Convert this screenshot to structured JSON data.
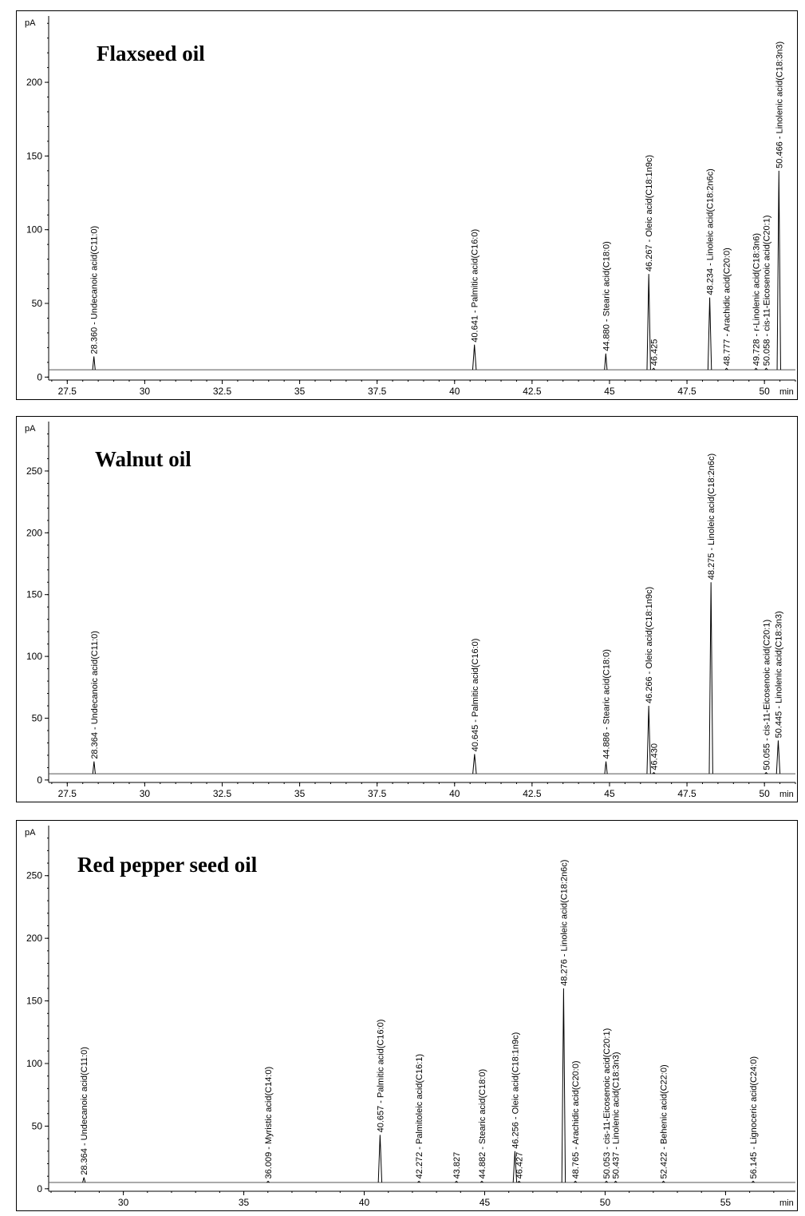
{
  "chart_data": [
    {
      "type": "line",
      "title": "Flaxseed oil",
      "ylabel": "pA",
      "xlabel": "min",
      "xlim": [
        26.9,
        51.0
      ],
      "ylim": [
        -2,
        245
      ],
      "baseline": 5,
      "xticks": [
        27.5,
        30,
        32.5,
        35,
        37.5,
        40,
        42.5,
        45,
        47.5,
        50
      ],
      "yticks": [
        0,
        50,
        100,
        150,
        200
      ],
      "peaks": [
        {
          "rt": 28.36,
          "height": 14,
          "label": "28.360 -  Undecanoic acid(C11:0)"
        },
        {
          "rt": 40.641,
          "height": 22,
          "label": "40.641 -  Palmitic acid(C16:0)"
        },
        {
          "rt": 44.88,
          "height": 16,
          "label": "44.880 -  Stearic acid(C18:0)"
        },
        {
          "rt": 46.267,
          "height": 70,
          "label": "46.267 -  Oleic acid(C18:1n9c)"
        },
        {
          "rt": 46.425,
          "height": 6,
          "label": "46.425"
        },
        {
          "rt": 48.234,
          "height": 54,
          "label": "48.234 -  Linoleic acid(C18:2n6c)"
        },
        {
          "rt": 48.777,
          "height": 6,
          "label": "48.777 -  Arachidic acid(C20:0)"
        },
        {
          "rt": 49.728,
          "height": 6,
          "label": "49.728 -  r-Linolenic acid(C18:3n6)"
        },
        {
          "rt": 50.058,
          "height": 6,
          "label": "50.058 -  cis-11-Eicosenoic acid(C20:1)"
        },
        {
          "rt": 50.466,
          "height": 140,
          "label": "50.466 -  Linolenic acid(C18:3n3)"
        }
      ]
    },
    {
      "type": "line",
      "title": "Walnut oil",
      "ylabel": "pA",
      "xlabel": "min",
      "xlim": [
        26.9,
        51.0
      ],
      "ylim": [
        -2,
        290
      ],
      "baseline": 5,
      "xticks": [
        27.5,
        30,
        32.5,
        35,
        37.5,
        40,
        42.5,
        45,
        47.5,
        50
      ],
      "yticks": [
        0,
        50,
        100,
        150,
        200,
        250
      ],
      "peaks": [
        {
          "rt": 28.364,
          "height": 15,
          "label": "28.364 -  Undecanoic acid(C11:0)"
        },
        {
          "rt": 40.645,
          "height": 21,
          "label": "40.645 -  Palmitic acid(C16:0)"
        },
        {
          "rt": 44.886,
          "height": 15,
          "label": "44.886 -  Stearic acid(C18:0)"
        },
        {
          "rt": 46.266,
          "height": 60,
          "label": "46.266 -  Oleic acid(C18:1n9c)"
        },
        {
          "rt": 46.43,
          "height": 6,
          "label": "46.430"
        },
        {
          "rt": 48.275,
          "height": 160,
          "label": "48.275 -  Linoleic acid(C18:2n6c)"
        },
        {
          "rt": 50.055,
          "height": 6,
          "label": "50.055 -  cis-11-Eicosenoic acid(C20:1)"
        },
        {
          "rt": 50.445,
          "height": 32,
          "label": "50.445 -  Linolenic acid(C18:3n3)"
        }
      ]
    },
    {
      "type": "line",
      "title": "Red pepper seed oil",
      "ylabel": "pA",
      "xlabel": "min",
      "xlim": [
        26.9,
        57.9
      ],
      "ylim": [
        -2,
        290
      ],
      "baseline": 5,
      "xticks": [
        30,
        35,
        40,
        45,
        50,
        55
      ],
      "yticks": [
        0,
        50,
        100,
        150,
        200,
        250
      ],
      "peaks": [
        {
          "rt": 28.364,
          "height": 9,
          "label": "28.364 -  Undecanoic acid(C11:0)"
        },
        {
          "rt": 36.009,
          "height": 6,
          "label": "36.009 -  Myristic acid(C14:0)"
        },
        {
          "rt": 40.657,
          "height": 43,
          "label": "40.657 -  Palmitic acid(C16:0)"
        },
        {
          "rt": 42.272,
          "height": 6,
          "label": "42.272 -  Palmitoleic acid(C16:1)"
        },
        {
          "rt": 43.827,
          "height": 6,
          "label": "43.827"
        },
        {
          "rt": 44.882,
          "height": 6,
          "label": "44.882 -  Stearic acid(C18:0)"
        },
        {
          "rt": 46.256,
          "height": 30,
          "label": "46.256 -  Oleic acid(C18:1n9c)"
        },
        {
          "rt": 46.427,
          "height": 6,
          "label": "46.427"
        },
        {
          "rt": 48.276,
          "height": 160,
          "label": "48.276 -  Linoleic acid(C18:2n6c)"
        },
        {
          "rt": 48.765,
          "height": 6,
          "label": "48.765 -  Arachidic acid(C20:0)"
        },
        {
          "rt": 50.053,
          "height": 6,
          "label": "50.053 -  cis-11-Eicosenoic acid(C20:1)"
        },
        {
          "rt": 50.437,
          "height": 6,
          "label": "50.437 -  Linolenic acid(C18:3n3)"
        },
        {
          "rt": 52.422,
          "height": 6,
          "label": "52.422 -  Behenic acid(C22:0)"
        },
        {
          "rt": 56.145,
          "height": 6,
          "label": "56.145 -  Lignoceric acid(C24:0)"
        }
      ]
    }
  ]
}
